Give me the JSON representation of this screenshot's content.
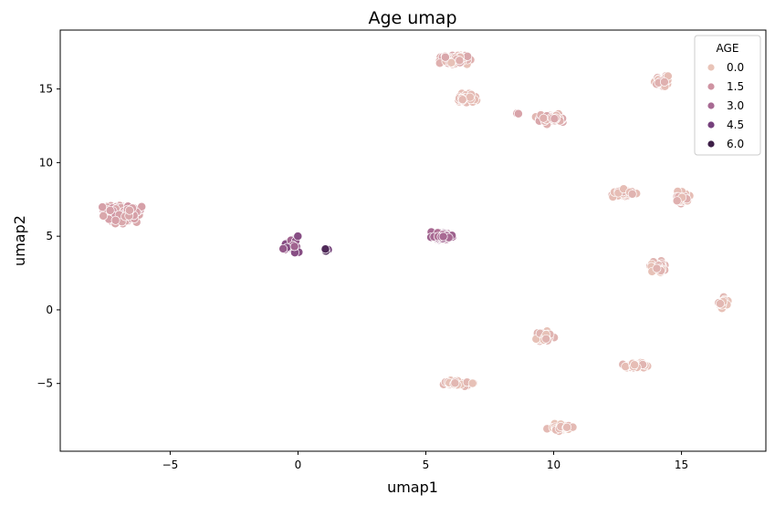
{
  "chart_data": {
    "type": "scatter",
    "title": "Age umap",
    "xlabel": "umap1",
    "ylabel": "umap2",
    "xlim": [
      -9.3,
      18.3
    ],
    "ylim": [
      -9.6,
      19.0
    ],
    "xticks": [
      -5,
      0,
      5,
      10,
      15
    ],
    "xtick_labels": [
      "−5",
      "0",
      "5",
      "10",
      "15"
    ],
    "yticks": [
      -5,
      0,
      5,
      10,
      15
    ],
    "ytick_labels": [
      "−5",
      "0",
      "5",
      "10",
      "15"
    ],
    "grid": false,
    "legend": {
      "title": "AGE",
      "placement": "top-right",
      "entries": [
        {
          "label": "0.0",
          "color": "#e9c4b8"
        },
        {
          "label": "1.5",
          "color": "#cf93a2"
        },
        {
          "label": "3.0",
          "color": "#a86a93"
        },
        {
          "label": "4.5",
          "color": "#76407c"
        },
        {
          "label": "6.0",
          "color": "#3d1f47"
        }
      ]
    },
    "clusters": [
      {
        "center": [
          -6.9,
          6.6
        ],
        "spread": [
          1.1,
          0.9
        ],
        "tilt": 0.42,
        "n": 130,
        "ages": [
          1.5,
          1.1,
          0.9
        ]
      },
      {
        "center": [
          -0.3,
          4.4
        ],
        "spread": [
          0.35,
          0.75
        ],
        "tilt": 0,
        "n": 28,
        "ages": [
          3.6,
          4.0,
          3.2
        ]
      },
      {
        "center": [
          1.1,
          4.05
        ],
        "spread": [
          0.2,
          0.15
        ],
        "tilt": 0,
        "n": 8,
        "ages": [
          4.6,
          5.5
        ]
      },
      {
        "center": [
          5.6,
          5.0
        ],
        "spread": [
          0.55,
          0.38
        ],
        "tilt": 0.1,
        "n": 60,
        "ages": [
          3.0,
          3.3,
          2.7
        ]
      },
      {
        "center": [
          6.2,
          17.0
        ],
        "spread": [
          0.85,
          0.45
        ],
        "tilt": -0.05,
        "n": 80,
        "ages": [
          0.3,
          0.1,
          0.6,
          0.9
        ]
      },
      {
        "center": [
          6.6,
          14.4
        ],
        "spread": [
          0.65,
          0.5
        ],
        "tilt": 0.3,
        "n": 40,
        "ages": [
          0.3,
          0.2
        ]
      },
      {
        "center": [
          8.6,
          13.3
        ],
        "spread": [
          0.12,
          0.08
        ],
        "tilt": 0,
        "n": 2,
        "ages": [
          1.0
        ]
      },
      {
        "center": [
          9.9,
          13.0
        ],
        "spread": [
          0.75,
          0.5
        ],
        "tilt": 0.15,
        "n": 55,
        "ages": [
          0.6,
          0.9,
          0.4
        ]
      },
      {
        "center": [
          14.2,
          15.5
        ],
        "spread": [
          0.4,
          0.6
        ],
        "tilt": 0,
        "n": 35,
        "ages": [
          0.2,
          0.6
        ]
      },
      {
        "center": [
          12.7,
          7.9
        ],
        "spread": [
          0.7,
          0.35
        ],
        "tilt": -0.1,
        "n": 40,
        "ages": [
          0.2,
          0.5
        ]
      },
      {
        "center": [
          15.0,
          7.6
        ],
        "spread": [
          0.45,
          0.6
        ],
        "tilt": 0.2,
        "n": 35,
        "ages": [
          0.2,
          0.6
        ]
      },
      {
        "center": [
          14.1,
          2.9
        ],
        "spread": [
          0.5,
          0.5
        ],
        "tilt": 0,
        "n": 40,
        "ages": [
          0.1,
          0.5
        ]
      },
      {
        "center": [
          16.6,
          0.5
        ],
        "spread": [
          0.3,
          0.5
        ],
        "tilt": 0,
        "n": 28,
        "ages": [
          0.1,
          0.4
        ]
      },
      {
        "center": [
          9.6,
          -1.8
        ],
        "spread": [
          0.5,
          0.55
        ],
        "tilt": 0.3,
        "n": 35,
        "ages": [
          0.1,
          0.5
        ]
      },
      {
        "center": [
          6.3,
          -5.0
        ],
        "spread": [
          0.8,
          0.25
        ],
        "tilt": -0.1,
        "n": 50,
        "ages": [
          0.1,
          0.4
        ]
      },
      {
        "center": [
          13.2,
          -3.8
        ],
        "spread": [
          0.7,
          0.3
        ],
        "tilt": 0.05,
        "n": 45,
        "ages": [
          0.2,
          0.5
        ]
      },
      {
        "center": [
          10.3,
          -8.0
        ],
        "spread": [
          0.6,
          0.35
        ],
        "tilt": 0,
        "n": 40,
        "ages": [
          0.0,
          0.3
        ]
      }
    ]
  }
}
